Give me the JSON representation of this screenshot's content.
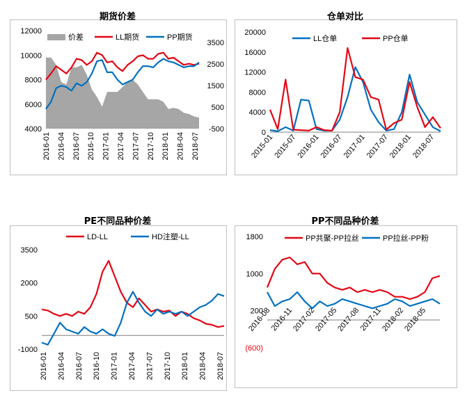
{
  "charts": [
    {
      "title": "期货价差",
      "type": "line",
      "legend": [
        {
          "name": "价差",
          "color": "#a6a6a6",
          "kind": "area"
        },
        {
          "name": "LL期货",
          "color": "#e30613",
          "kind": "line"
        },
        {
          "name": "PP期货",
          "color": "#0070c0",
          "kind": "line"
        }
      ],
      "x_ticks": [
        "2016-01",
        "2016-04",
        "2016-07",
        "2016-10",
        "2017-01",
        "2017-04",
        "2017-07",
        "2017-10",
        "2018-01",
        "2018-04",
        "2018-07"
      ],
      "y_left_ticks": [
        "12000",
        "10000",
        "8000",
        "6000",
        "4000"
      ],
      "y_right_ticks": [
        "3500",
        "2500",
        "1500",
        "500",
        "-500"
      ],
      "y_left_range": [
        4000,
        12000
      ],
      "y_right_range": [
        -500,
        3500
      ]
    },
    {
      "title": "仓单对比",
      "type": "line",
      "legend": [
        {
          "name": "LL仓单",
          "color": "#0070c0",
          "kind": "line"
        },
        {
          "name": "PP仓单",
          "color": "#e30613",
          "kind": "line"
        }
      ],
      "x_ticks": [
        "2015-01",
        "2015-07",
        "2016-01",
        "2016-07",
        "2017-01",
        "2017-07",
        "2018-01",
        "2018-07"
      ],
      "y_left_ticks": [
        "20000",
        "16000",
        "12000",
        "8000",
        "4000",
        "0"
      ],
      "y_left_range": [
        0,
        20000
      ]
    },
    {
      "title": "PE不同品种价差",
      "type": "line",
      "legend": [
        {
          "name": "LD-LL",
          "color": "#e30613",
          "kind": "line"
        },
        {
          "name": "HD注塑-LL",
          "color": "#0070c0",
          "kind": "line"
        }
      ],
      "x_ticks": [
        "2016-01",
        "2016-04",
        "2016-07",
        "2016-10",
        "2017-01",
        "2017-04",
        "2017-07",
        "2017-10",
        "2018-01",
        "2018-04",
        "2018-07"
      ],
      "y_left_ticks": [
        "3500",
        "2000",
        "500",
        "-1000"
      ],
      "y_left_range": [
        -1000,
        3500
      ]
    },
    {
      "title": "PP不同品种价差",
      "type": "line",
      "legend": [
        {
          "name": "PP共聚-PP拉丝",
          "color": "#e30613",
          "kind": "line"
        },
        {
          "name": "PP拉丝-PP粉",
          "color": "#0070c0",
          "kind": "line"
        }
      ],
      "x_ticks": [
        "2016-08",
        "2016-11",
        "2017-02",
        "2017-05",
        "2017-08",
        "2017-11",
        "2018-02",
        "2018-05"
      ],
      "y_left_ticks": [
        "1800",
        "1000",
        "200",
        "(600)"
      ],
      "y_left_range": [
        -600,
        1800
      ]
    }
  ],
  "chart_data": [
    {
      "type": "line",
      "title": "期货价差",
      "xlabel": "",
      "ylabel": "",
      "ylim": [
        4000,
        12000
      ],
      "y2lim": [
        -500,
        3500
      ],
      "series": [
        {
          "name": "LL期货",
          "axis": "left",
          "x": [
            "2016-01",
            "2016-02",
            "2016-03",
            "2016-04",
            "2016-05",
            "2016-06",
            "2016-07",
            "2016-08",
            "2016-09",
            "2016-10",
            "2016-11",
            "2016-12",
            "2017-01",
            "2017-02",
            "2017-03",
            "2017-04",
            "2017-05",
            "2017-06",
            "2017-07",
            "2017-08",
            "2017-09",
            "2017-10",
            "2017-11",
            "2017-12",
            "2018-01",
            "2018-02",
            "2018-03",
            "2018-04",
            "2018-05",
            "2018-06",
            "2018-07"
          ],
          "values": [
            8000,
            8500,
            9100,
            8800,
            8500,
            9000,
            9700,
            9600,
            9200,
            9500,
            10200,
            10000,
            9400,
            9500,
            9000,
            8700,
            9200,
            9500,
            9900,
            10000,
            9700,
            9700,
            10100,
            10200,
            9700,
            9800,
            9500,
            9200,
            9300,
            9200,
            9300
          ]
        },
        {
          "name": "PP期货",
          "axis": "left",
          "x": [
            "2016-01",
            "2016-02",
            "2016-03",
            "2016-04",
            "2016-05",
            "2016-06",
            "2016-07",
            "2016-08",
            "2016-09",
            "2016-10",
            "2016-11",
            "2016-12",
            "2017-01",
            "2017-02",
            "2017-03",
            "2017-04",
            "2017-05",
            "2017-06",
            "2017-07",
            "2017-08",
            "2017-09",
            "2017-10",
            "2017-11",
            "2017-12",
            "2018-01",
            "2018-02",
            "2018-03",
            "2018-04",
            "2018-05",
            "2018-06",
            "2018-07"
          ],
          "values": [
            5600,
            6200,
            7300,
            7500,
            7400,
            7100,
            7700,
            7500,
            7800,
            8500,
            9500,
            9600,
            8600,
            8600,
            8000,
            7600,
            7800,
            8000,
            8600,
            9100,
            9100,
            9000,
            9400,
            9700,
            9500,
            9400,
            9200,
            9000,
            9100,
            9100,
            9400
          ]
        },
        {
          "name": "价差",
          "axis": "right",
          "x": [
            "2016-01",
            "2016-02",
            "2016-03",
            "2016-04",
            "2016-05",
            "2016-06",
            "2016-07",
            "2016-08",
            "2016-09",
            "2016-10",
            "2016-11",
            "2016-12",
            "2017-01",
            "2017-02",
            "2017-03",
            "2017-04",
            "2017-05",
            "2017-06",
            "2017-07",
            "2017-08",
            "2017-09",
            "2017-10",
            "2017-11",
            "2017-12",
            "2018-01",
            "2018-02",
            "2018-03",
            "2018-04",
            "2018-05",
            "2018-06",
            "2018-07"
          ],
          "values": [
            2400,
            2400,
            2100,
            1400,
            1300,
            2000,
            2000,
            2100,
            1700,
            1100,
            800,
            400,
            1000,
            1000,
            1000,
            1200,
            1400,
            1500,
            1300,
            1000,
            700,
            700,
            700,
            600,
            300,
            350,
            300,
            150,
            100,
            0,
            -50
          ]
        }
      ]
    },
    {
      "type": "line",
      "title": "仓单对比",
      "xlabel": "",
      "ylabel": "",
      "ylim": [
        0,
        20000
      ],
      "series": [
        {
          "name": "LL仓单",
          "x": [
            "2015-01",
            "2015-03",
            "2015-05",
            "2015-07",
            "2015-09",
            "2015-11",
            "2016-01",
            "2016-03",
            "2016-05",
            "2016-07",
            "2016-09",
            "2016-11",
            "2017-01",
            "2017-03",
            "2017-05",
            "2017-07",
            "2017-09",
            "2017-11",
            "2018-01",
            "2018-03",
            "2018-05",
            "2018-07",
            "2018-09"
          ],
          "values": [
            400,
            200,
            1000,
            300,
            6500,
            6300,
            600,
            300,
            300,
            2500,
            7000,
            13000,
            10000,
            4500,
            2000,
            300,
            600,
            4000,
            11500,
            6000,
            3500,
            1000,
            200
          ]
        },
        {
          "name": "PP仓单",
          "x": [
            "2015-01",
            "2015-03",
            "2015-05",
            "2015-07",
            "2015-09",
            "2015-11",
            "2016-01",
            "2016-03",
            "2016-05",
            "2016-07",
            "2016-09",
            "2016-11",
            "2017-01",
            "2017-03",
            "2017-05",
            "2017-07",
            "2017-09",
            "2017-11",
            "2018-01",
            "2018-03",
            "2018-05",
            "2018-07",
            "2018-09"
          ],
          "values": [
            4500,
            600,
            10500,
            500,
            400,
            300,
            1000,
            400,
            300,
            4000,
            16800,
            11000,
            10500,
            7000,
            6500,
            500,
            1800,
            2500,
            10000,
            5000,
            1000,
            3000,
            800
          ]
        }
      ]
    },
    {
      "type": "line",
      "title": "PE不同品种价差",
      "xlabel": "",
      "ylabel": "",
      "ylim": [
        -1000,
        3500
      ],
      "series": [
        {
          "name": "LD-LL",
          "x": [
            "2016-01",
            "2016-02",
            "2016-03",
            "2016-04",
            "2016-05",
            "2016-06",
            "2016-07",
            "2016-08",
            "2016-09",
            "2016-10",
            "2016-11",
            "2016-12",
            "2017-01",
            "2017-02",
            "2017-03",
            "2017-04",
            "2017-05",
            "2017-06",
            "2017-07",
            "2017-08",
            "2017-09",
            "2017-10",
            "2017-11",
            "2017-12",
            "2018-01",
            "2018-02",
            "2018-03",
            "2018-04",
            "2018-05",
            "2018-06",
            "2018-07"
          ],
          "values": [
            800,
            750,
            600,
            500,
            600,
            500,
            700,
            600,
            900,
            1500,
            2500,
            3000,
            2300,
            1600,
            1100,
            900,
            1300,
            1000,
            700,
            800,
            700,
            750,
            500,
            700,
            600,
            400,
            300,
            150,
            100,
            0,
            50
          ]
        },
        {
          "name": "HD注塑-LL",
          "x": [
            "2016-01",
            "2016-02",
            "2016-03",
            "2016-04",
            "2016-05",
            "2016-06",
            "2016-07",
            "2016-08",
            "2016-09",
            "2016-10",
            "2016-11",
            "2016-12",
            "2017-01",
            "2017-02",
            "2017-03",
            "2017-04",
            "2017-05",
            "2017-06",
            "2017-07",
            "2017-08",
            "2017-09",
            "2017-10",
            "2017-11",
            "2017-12",
            "2018-01",
            "2018-02",
            "2018-03",
            "2018-04",
            "2018-05",
            "2018-06",
            "2018-07"
          ],
          "values": [
            -700,
            -800,
            -300,
            200,
            -100,
            -200,
            -300,
            0,
            -200,
            -300,
            -100,
            -300,
            -400,
            200,
            1100,
            1600,
            1100,
            700,
            500,
            800,
            600,
            700,
            600,
            700,
            500,
            700,
            900,
            1000,
            1200,
            1500,
            1400
          ]
        }
      ]
    },
    {
      "type": "line",
      "title": "PP不同品种价差",
      "xlabel": "",
      "ylabel": "",
      "ylim": [
        -600,
        1800
      ],
      "series": [
        {
          "name": "PP共聚-PP拉丝",
          "x": [
            "2016-08",
            "2016-09",
            "2016-10",
            "2016-11",
            "2016-12",
            "2017-01",
            "2017-02",
            "2017-03",
            "2017-04",
            "2017-05",
            "2017-06",
            "2017-07",
            "2017-08",
            "2017-09",
            "2017-10",
            "2017-11",
            "2017-12",
            "2018-01",
            "2018-02",
            "2018-03",
            "2018-04",
            "2018-05",
            "2018-06",
            "2018-07"
          ],
          "values": [
            700,
            1100,
            1300,
            1350,
            1200,
            1250,
            1000,
            1000,
            800,
            700,
            650,
            700,
            600,
            650,
            600,
            650,
            600,
            500,
            500,
            450,
            500,
            600,
            900,
            950
          ]
        },
        {
          "name": "PP拉丝-PP粉",
          "x": [
            "2016-08",
            "2016-09",
            "2016-10",
            "2016-11",
            "2016-12",
            "2017-01",
            "2017-02",
            "2017-03",
            "2017-04",
            "2017-05",
            "2017-06",
            "2017-07",
            "2017-08",
            "2017-09",
            "2017-10",
            "2017-11",
            "2017-12",
            "2018-01",
            "2018-02",
            "2018-03",
            "2018-04",
            "2018-05",
            "2018-06",
            "2018-07"
          ],
          "values": [
            600,
            300,
            400,
            450,
            600,
            400,
            250,
            400,
            300,
            350,
            450,
            400,
            350,
            300,
            250,
            300,
            350,
            450,
            400,
            300,
            350,
            400,
            450,
            350
          ]
        }
      ]
    }
  ]
}
